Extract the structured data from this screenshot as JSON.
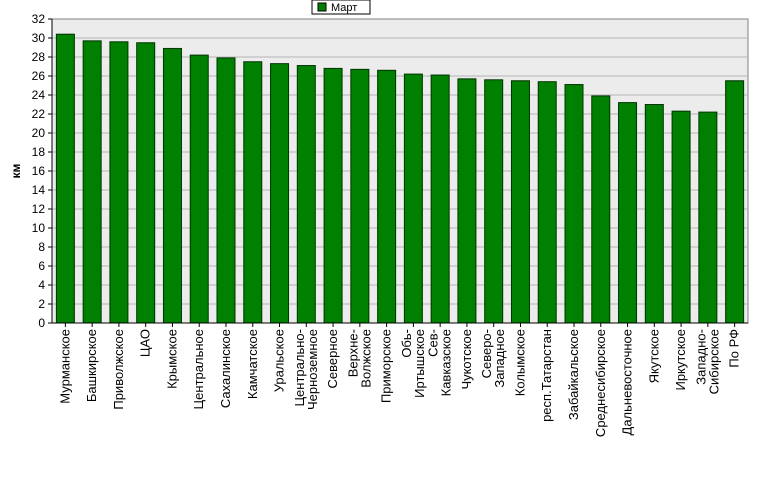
{
  "chart_data": {
    "type": "bar",
    "title": "",
    "xlabel": "",
    "ylabel": "км",
    "ylim": [
      0,
      32
    ],
    "ytick_step": 2,
    "grid": true,
    "legend_position": "top-center",
    "series": [
      {
        "name": "Март",
        "color": "#008000",
        "values": [
          30.4,
          29.7,
          29.6,
          29.5,
          28.9,
          28.2,
          27.9,
          27.5,
          27.3,
          27.1,
          26.8,
          26.7,
          26.6,
          26.2,
          26.1,
          25.7,
          25.6,
          25.5,
          25.4,
          25.1,
          23.9,
          23.2,
          23.0,
          22.3,
          22.2,
          25.5
        ]
      }
    ],
    "categories": [
      [
        "Мурманское"
      ],
      [
        "Башкирское"
      ],
      [
        "Приволжское"
      ],
      [
        "ЦАО"
      ],
      [
        "Крымское"
      ],
      [
        "Центральное"
      ],
      [
        "Сахалинское"
      ],
      [
        "Камчатское"
      ],
      [
        "Уральское"
      ],
      [
        "Центрально-",
        "Черноземное"
      ],
      [
        "Северное"
      ],
      [
        "Верхне-",
        "Волжское"
      ],
      [
        "Приморское"
      ],
      [
        "Обь-",
        "Иртышское"
      ],
      [
        "Сев-",
        "Кавказское"
      ],
      [
        "Чукотское"
      ],
      [
        "Северо-",
        "Западное"
      ],
      [
        "Колымское"
      ],
      [
        "респ.Татарстан"
      ],
      [
        "Забайкальское"
      ],
      [
        "Среднесибирское"
      ],
      [
        "Дальневосточное"
      ],
      [
        "Якутское"
      ],
      [
        "Иркутское"
      ],
      [
        "Западно-",
        "Сибирское"
      ],
      [
        "По РФ"
      ]
    ]
  }
}
